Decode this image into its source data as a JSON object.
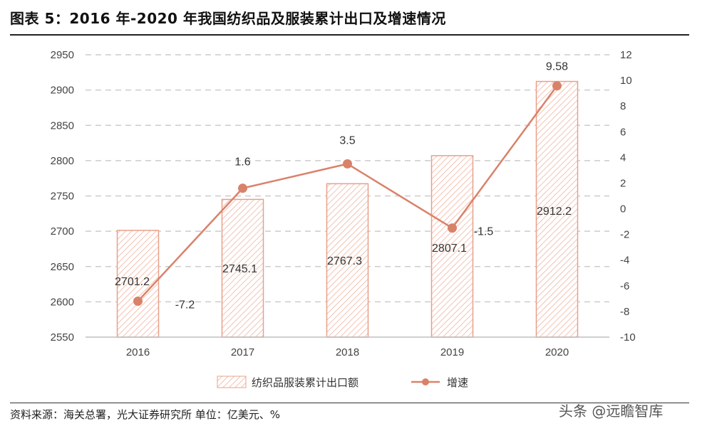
{
  "header": {
    "title": "图表 5：2016 年-2020 年我国纺织品及服装累计出口及增速情况"
  },
  "footer": {
    "source": "资料来源：海关总署，光大证券研究所    单位：亿美元、%",
    "watermark": "头条 @远瞻智库"
  },
  "colors": {
    "bar_stroke": "#e8a08a",
    "bar_hatch": "#f2c3b3",
    "line": "#d9826a",
    "grid": "#cccccc"
  },
  "chart_data": {
    "type": "bar",
    "categories": [
      "2016",
      "2017",
      "2018",
      "2019",
      "2020"
    ],
    "series": [
      {
        "name": "纺织品服装累计出口额",
        "type": "bar",
        "axis": "left",
        "values": [
          2701.2,
          2745.1,
          2767.3,
          2807.1,
          2912.2
        ],
        "labels": [
          "2701.2",
          "2745.1",
          "2767.3",
          "2807.1",
          "2912.2"
        ]
      },
      {
        "name": "增速",
        "type": "line",
        "axis": "right",
        "values": [
          -7.2,
          1.6,
          3.5,
          -1.5,
          9.58
        ],
        "labels": [
          "-7.2",
          "1.6",
          "3.5",
          "-1.5",
          "9.58"
        ]
      }
    ],
    "y_left": {
      "ylim": [
        2550,
        2950
      ],
      "ticks": [
        "2550",
        "2600",
        "2650",
        "2700",
        "2750",
        "2800",
        "2850",
        "2900",
        "2950"
      ]
    },
    "y_right": {
      "ylim": [
        -10,
        12
      ],
      "ticks": [
        "-10",
        "-8",
        "-6",
        "-4",
        "-2",
        "0",
        "2",
        "4",
        "6",
        "8",
        "10",
        "12"
      ]
    },
    "grid": true,
    "legend": "bottom"
  }
}
